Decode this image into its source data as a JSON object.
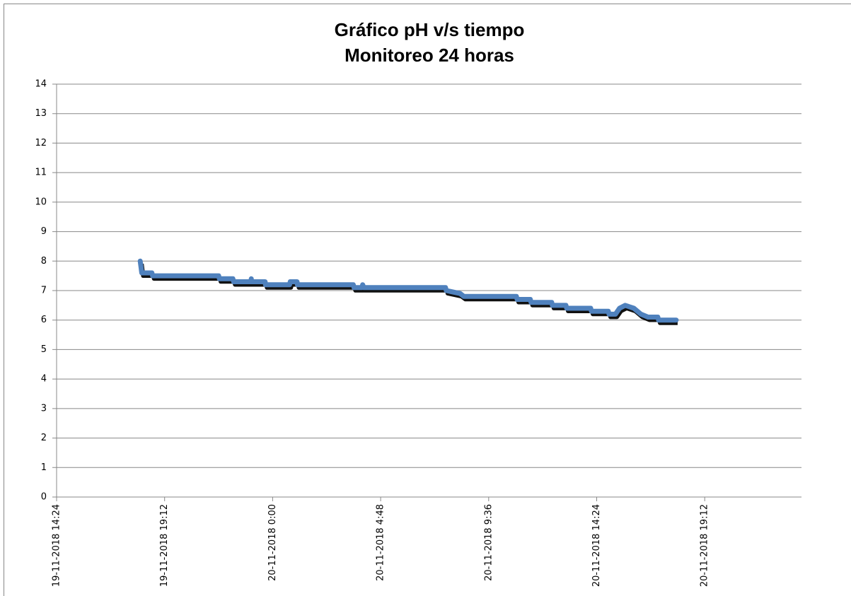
{
  "chart_data": {
    "type": "line",
    "title": "Gráfico pH v/s tiempo",
    "subtitle": "Monitoreo 24 horas",
    "x": [
      "19-11-2018 18:07",
      "19-11-2018 18:09",
      "19-11-2018 18:11",
      "19-11-2018 18:38",
      "19-11-2018 18:40",
      "19-11-2018 21:36",
      "19-11-2018 21:38",
      "19-11-2018 22:14",
      "19-11-2018 22:16",
      "19-11-2018 23:02",
      "19-11-2018 23:03",
      "19-11-2018 23:04",
      "19-11-2018 23:40",
      "19-11-2018 23:41",
      "20-11-2018 0:45",
      "20-11-2018 0:47",
      "20-11-2018 1:05",
      "20-11-2018 1:06",
      "20-11-2018 3:35",
      "20-11-2018 3:37",
      "20-11-2018 3:58",
      "20-11-2018 4:00",
      "20-11-2018 4:03",
      "20-11-2018 7:41",
      "20-11-2018 7:43",
      "20-11-2018 8:20",
      "20-11-2018 8:30",
      "20-11-2018 10:50",
      "20-11-2018 10:52",
      "20-11-2018 11:27",
      "20-11-2018 11:29",
      "20-11-2018 12:24",
      "20-11-2018 12:26",
      "20-11-2018 13:02",
      "20-11-2018 13:04",
      "20-11-2018 14:08",
      "20-11-2018 14:10",
      "20-11-2018 14:55",
      "20-11-2018 14:57",
      "20-11-2018 15:14",
      "20-11-2018 15:25",
      "20-11-2018 15:40",
      "20-11-2018 16:03",
      "20-11-2018 16:22",
      "20-11-2018 16:41",
      "20-11-2018 17:07",
      "20-11-2018 17:09",
      "20-11-2018 17:56"
    ],
    "series": [
      {
        "name": "pH",
        "color": "#4f81bd",
        "values": [
          8.0,
          7.8,
          7.6,
          7.6,
          7.5,
          7.5,
          7.4,
          7.4,
          7.3,
          7.3,
          7.4,
          7.3,
          7.3,
          7.2,
          7.2,
          7.3,
          7.3,
          7.2,
          7.2,
          7.1,
          7.1,
          7.2,
          7.1,
          7.1,
          7.0,
          6.9,
          6.8,
          6.8,
          6.7,
          6.7,
          6.6,
          6.6,
          6.5,
          6.5,
          6.4,
          6.4,
          6.3,
          6.3,
          6.2,
          6.2,
          6.4,
          6.5,
          6.4,
          6.2,
          6.1,
          6.1,
          6.0,
          6.0
        ]
      }
    ],
    "xlim": [
      "19-11-2018 14:24",
      "20-11-2018 23:30"
    ],
    "xticks": [
      "19-11-2018 14:24",
      "19-11-2018 19:12",
      "20-11-2018 0:00",
      "20-11-2018 4:48",
      "20-11-2018 9:36",
      "20-11-2018 14:24",
      "20-11-2018 19:12"
    ],
    "ylim": [
      0,
      14
    ],
    "yticks": [
      0,
      1,
      2,
      3,
      4,
      5,
      6,
      7,
      8,
      9,
      10,
      11,
      12,
      13,
      14
    ],
    "grid": true
  }
}
